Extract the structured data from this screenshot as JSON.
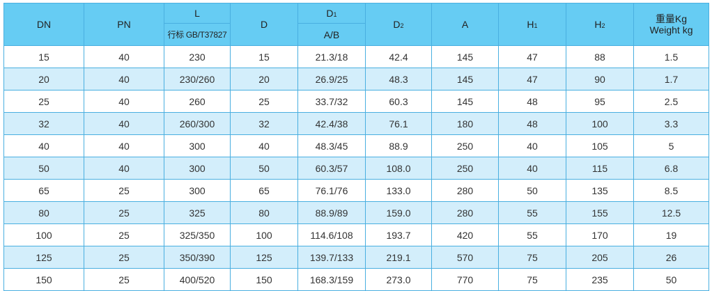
{
  "header": {
    "dn": "DN",
    "pn": "PN",
    "l": "L",
    "l_sub": "行标 GB/T37827",
    "d": "D",
    "d1": [
      "D",
      "1"
    ],
    "d1_sub": "A/B",
    "d2": [
      "D",
      "2"
    ],
    "a": "A",
    "h1": [
      "H",
      "1"
    ],
    "h2": [
      "H",
      "2"
    ],
    "weight": [
      "重量Kg",
      "Weight kg"
    ]
  },
  "table": {
    "rows": [
      [
        "15",
        "40",
        "230",
        "15",
        "21.3/18",
        "42.4",
        "145",
        "47",
        "88",
        "1.5"
      ],
      [
        "20",
        "40",
        "230/260",
        "20",
        "26.9/25",
        "48.3",
        "145",
        "47",
        "90",
        "1.7"
      ],
      [
        "25",
        "40",
        "260",
        "25",
        "33.7/32",
        "60.3",
        "145",
        "48",
        "95",
        "2.5"
      ],
      [
        "32",
        "40",
        "260/300",
        "32",
        "42.4/38",
        "76.1",
        "180",
        "48",
        "100",
        "3.3"
      ],
      [
        "40",
        "40",
        "300",
        "40",
        "48.3/45",
        "88.9",
        "250",
        "40",
        "105",
        "5"
      ],
      [
        "50",
        "40",
        "300",
        "50",
        "60.3/57",
        "108.0",
        "250",
        "40",
        "115",
        "6.8"
      ],
      [
        "65",
        "25",
        "300",
        "65",
        "76.1/76",
        "133.0",
        "280",
        "50",
        "135",
        "8.5"
      ],
      [
        "80",
        "25",
        "325",
        "80",
        "88.9/89",
        "159.0",
        "280",
        "55",
        "155",
        "12.5"
      ],
      [
        "100",
        "25",
        "325/350",
        "100",
        "114.6/108",
        "193.7",
        "420",
        "55",
        "170",
        "19"
      ],
      [
        "125",
        "25",
        "350/390",
        "125",
        "139.7/133",
        "219.1",
        "570",
        "75",
        "205",
        "26"
      ],
      [
        "150",
        "25",
        "400/520",
        "150",
        "168.3/159",
        "273.0",
        "770",
        "75",
        "235",
        "50"
      ]
    ]
  }
}
